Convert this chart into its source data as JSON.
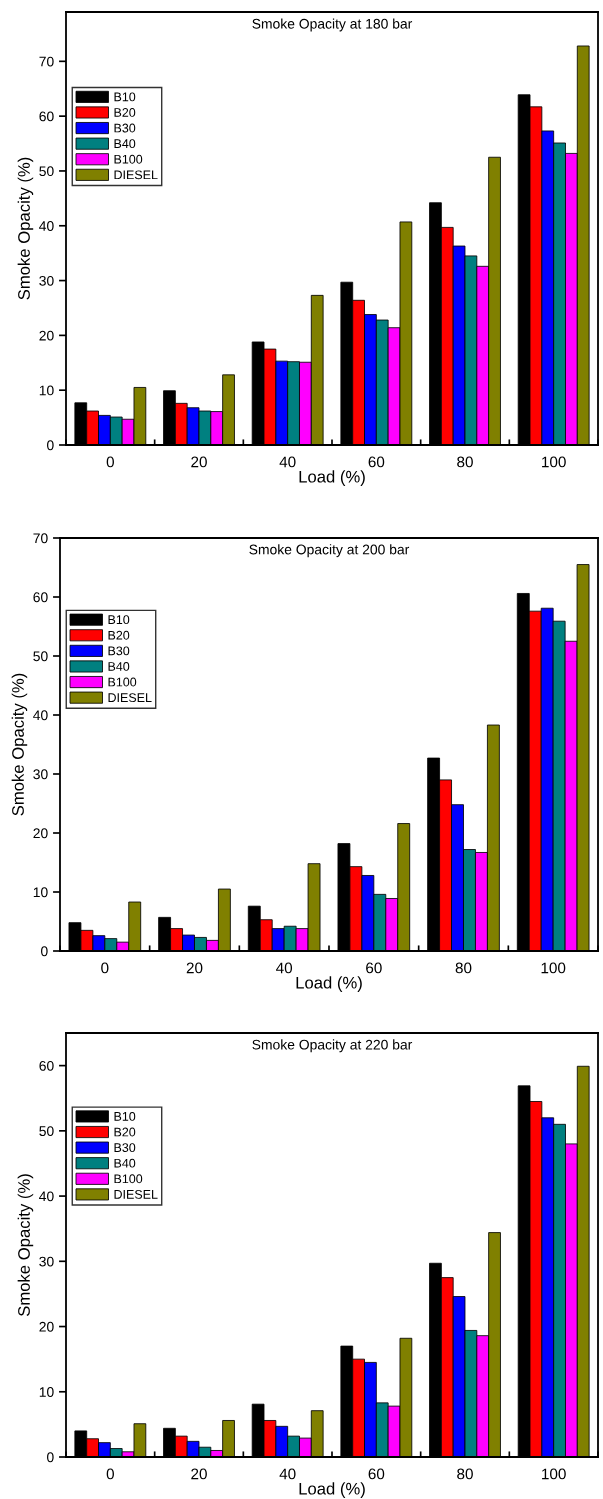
{
  "chart_data": [
    {
      "type": "bar",
      "title": "Smoke Opacity at 180 bar",
      "xlabel": "Load (%)",
      "ylabel": "Smoke Opacity (%)",
      "categories": [
        "0",
        "20",
        "40",
        "60",
        "80",
        "100"
      ],
      "ylim": [
        0,
        79
      ],
      "yticks": [
        0,
        10,
        20,
        30,
        40,
        50,
        60,
        70
      ],
      "legend": "top left",
      "grid": false,
      "series": [
        {
          "name": "B10",
          "color": "#000000",
          "values": [
            7.7,
            9.9,
            18.8,
            29.7,
            44.2,
            63.9
          ]
        },
        {
          "name": "B20",
          "color": "#ff0000",
          "values": [
            6.2,
            7.6,
            17.5,
            26.4,
            39.7,
            61.7
          ]
        },
        {
          "name": "B30",
          "color": "#0000ff",
          "values": [
            5.4,
            6.8,
            15.3,
            23.8,
            36.3,
            57.3
          ]
        },
        {
          "name": "B40",
          "color": "#008080",
          "values": [
            5.1,
            6.2,
            15.2,
            22.8,
            34.5,
            55.1
          ]
        },
        {
          "name": "B100",
          "color": "#ff00ff",
          "values": [
            4.7,
            6.1,
            15.1,
            21.4,
            32.6,
            53.2
          ]
        },
        {
          "name": "DIESEL",
          "color": "#808000",
          "values": [
            10.5,
            12.8,
            27.3,
            40.7,
            52.5,
            72.8
          ]
        }
      ]
    },
    {
      "type": "bar",
      "title": "Smoke Opacity at 200 bar",
      "xlabel": "Load (%)",
      "ylabel": "Smoke Opacity (%)",
      "categories": [
        "0",
        "20",
        "40",
        "60",
        "80",
        "100"
      ],
      "ylim": [
        0,
        70
      ],
      "yticks": [
        0,
        10,
        20,
        30,
        40,
        50,
        60,
        70
      ],
      "legend": "top left",
      "grid": false,
      "series": [
        {
          "name": "B10",
          "color": "#000000",
          "values": [
            4.8,
            5.7,
            7.6,
            18.2,
            32.7,
            60.6
          ]
        },
        {
          "name": "B20",
          "color": "#ff0000",
          "values": [
            3.5,
            3.8,
            5.3,
            14.3,
            29.0,
            57.6
          ]
        },
        {
          "name": "B30",
          "color": "#0000ff",
          "values": [
            2.6,
            2.7,
            3.8,
            12.8,
            24.8,
            58.1
          ]
        },
        {
          "name": "B40",
          "color": "#008080",
          "values": [
            2.1,
            2.3,
            4.2,
            9.6,
            17.2,
            55.9
          ]
        },
        {
          "name": "B100",
          "color": "#ff00ff",
          "values": [
            1.5,
            1.8,
            3.8,
            8.9,
            16.7,
            52.5
          ]
        },
        {
          "name": "DIESEL",
          "color": "#808000",
          "values": [
            8.3,
            10.5,
            14.8,
            21.6,
            38.3,
            65.5
          ]
        }
      ]
    },
    {
      "type": "bar",
      "title": "Smoke Opacity at 220 bar",
      "xlabel": "Load (%)",
      "ylabel": "Smoke Opacity (%)",
      "categories": [
        "0",
        "20",
        "40",
        "60",
        "80",
        "100"
      ],
      "ylim": [
        0,
        65
      ],
      "yticks": [
        0,
        10,
        20,
        30,
        40,
        50,
        60
      ],
      "legend": "top left",
      "grid": false,
      "series": [
        {
          "name": "B10",
          "color": "#000000",
          "values": [
            4.0,
            4.4,
            8.1,
            17.0,
            29.7,
            56.9
          ]
        },
        {
          "name": "B20",
          "color": "#ff0000",
          "values": [
            2.8,
            3.2,
            5.6,
            15.0,
            27.5,
            54.5
          ]
        },
        {
          "name": "B30",
          "color": "#0000ff",
          "values": [
            2.2,
            2.4,
            4.7,
            14.5,
            24.6,
            52.0
          ]
        },
        {
          "name": "B40",
          "color": "#008080",
          "values": [
            1.3,
            1.5,
            3.2,
            8.3,
            19.4,
            51.0
          ]
        },
        {
          "name": "B100",
          "color": "#ff00ff",
          "values": [
            0.8,
            1.0,
            2.9,
            7.8,
            18.6,
            48.0
          ]
        },
        {
          "name": "DIESEL",
          "color": "#808000",
          "values": [
            5.1,
            5.6,
            7.1,
            18.2,
            34.4,
            59.9
          ]
        }
      ]
    }
  ]
}
